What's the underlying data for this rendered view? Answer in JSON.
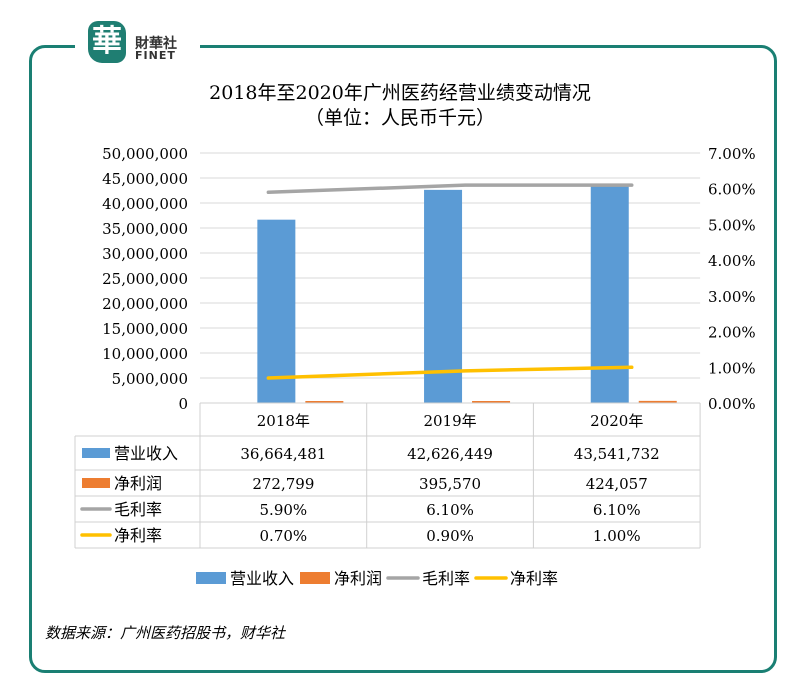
{
  "logo": {
    "cn": "財華社",
    "en": "FINET",
    "seal": "華"
  },
  "source": "数据来源：广州医药招股书，财华社",
  "chart_data": {
    "type": "bar",
    "title": "2018年至2020年广州医药经营业绩变动情况",
    "subtitle": "（单位：人民币千元）",
    "categories": [
      "2018年",
      "2019年",
      "2020年"
    ],
    "y_left": {
      "range": [
        0,
        50000000
      ],
      "ticks": [
        "0",
        "5,000,000",
        "10,000,000",
        "15,000,000",
        "20,000,000",
        "25,000,000",
        "30,000,000",
        "35,000,000",
        "40,000,000",
        "45,000,000",
        "50,000,000"
      ]
    },
    "y_right": {
      "range": [
        0,
        7
      ],
      "ticks": [
        "0.00%",
        "1.00%",
        "2.00%",
        "3.00%",
        "4.00%",
        "5.00%",
        "6.00%",
        "7.00%"
      ]
    },
    "grid": true,
    "legend_position": "bottom",
    "series": [
      {
        "name": "营业收入",
        "type": "bar",
        "axis": "left",
        "color": "#5b9bd5",
        "values": [
          36664481,
          42626449,
          43541732
        ],
        "labels": [
          "36,664,481",
          "42,626,449",
          "43,541,732"
        ]
      },
      {
        "name": "净利润",
        "type": "bar",
        "axis": "left",
        "color": "#ed7d31",
        "values": [
          272799,
          395570,
          424057
        ],
        "labels": [
          "272,799",
          "395,570",
          "424,057"
        ]
      },
      {
        "name": "毛利率",
        "type": "line",
        "axis": "right",
        "color": "#a5a5a5",
        "values": [
          5.9,
          6.1,
          6.1
        ],
        "labels": [
          "5.90%",
          "6.10%",
          "6.10%"
        ]
      },
      {
        "name": "净利率",
        "type": "line",
        "axis": "right",
        "color": "#ffc000",
        "values": [
          0.7,
          0.9,
          1.0
        ],
        "labels": [
          "0.70%",
          "0.90%",
          "1.00%"
        ]
      }
    ]
  }
}
